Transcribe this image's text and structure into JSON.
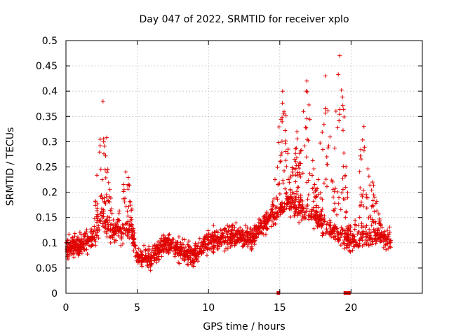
{
  "chart_data": {
    "type": "scatter",
    "title": "Day 047 of 2022, SRMTID for receiver xplo",
    "xlabel": "GPS time / hours",
    "ylabel": "SRMTID / TECUs",
    "xlim": [
      0,
      25
    ],
    "ylim": [
      0,
      0.5
    ],
    "grid": true,
    "x_ticks": [
      0,
      5,
      10,
      15,
      20
    ],
    "x_tick_labels": [
      "0",
      "5",
      "10",
      "15",
      "20"
    ],
    "y_ticks": [
      0,
      0.05,
      0.1,
      0.15,
      0.2,
      0.25,
      0.3,
      0.35,
      0.4,
      0.45,
      0.5
    ],
    "y_tick_labels": [
      "0",
      "0.05",
      "0.1",
      "0.15",
      "0.2",
      "0.25",
      "0.3",
      "0.35",
      "0.4",
      "0.45",
      "0.5"
    ],
    "x_range_covered": [
      0,
      22.8
    ],
    "series": [
      {
        "name": "SRMTID",
        "marker": "+",
        "color": "#e00000",
        "n_points_approx": 2100,
        "baseline_profile": [
          [
            0,
            0.09
          ],
          [
            1,
            0.095
          ],
          [
            2,
            0.11
          ],
          [
            2.5,
            0.15
          ],
          [
            3,
            0.12
          ],
          [
            4,
            0.12
          ],
          [
            4.5,
            0.13
          ],
          [
            5,
            0.07
          ],
          [
            6,
            0.07
          ],
          [
            7,
            0.1
          ],
          [
            8,
            0.085
          ],
          [
            9,
            0.075
          ],
          [
            10,
            0.105
          ],
          [
            11,
            0.11
          ],
          [
            12,
            0.115
          ],
          [
            13,
            0.11
          ],
          [
            14,
            0.14
          ],
          [
            15,
            0.16
          ],
          [
            15.5,
            0.18
          ],
          [
            16,
            0.17
          ],
          [
            17,
            0.16
          ],
          [
            18,
            0.14
          ],
          [
            19,
            0.12
          ],
          [
            20,
            0.1
          ],
          [
            21,
            0.11
          ],
          [
            22,
            0.11
          ],
          [
            22.8,
            0.105
          ]
        ],
        "peaks": [
          {
            "x": 2.6,
            "y": 0.38
          },
          {
            "x": 4.2,
            "y": 0.24
          },
          {
            "x": 15.2,
            "y": 0.4
          },
          {
            "x": 16.2,
            "y": 0.32
          },
          {
            "x": 16.9,
            "y": 0.42
          },
          {
            "x": 18.2,
            "y": 0.43
          },
          {
            "x": 19.2,
            "y": 0.47
          },
          {
            "x": 20.9,
            "y": 0.33
          },
          {
            "x": 21.5,
            "y": 0.22
          }
        ]
      }
    ],
    "gap_markers": [
      {
        "x": 14.9,
        "y": 0
      },
      {
        "x": 19.6,
        "y": 0
      },
      {
        "x": 19.85,
        "y": 0
      }
    ]
  }
}
